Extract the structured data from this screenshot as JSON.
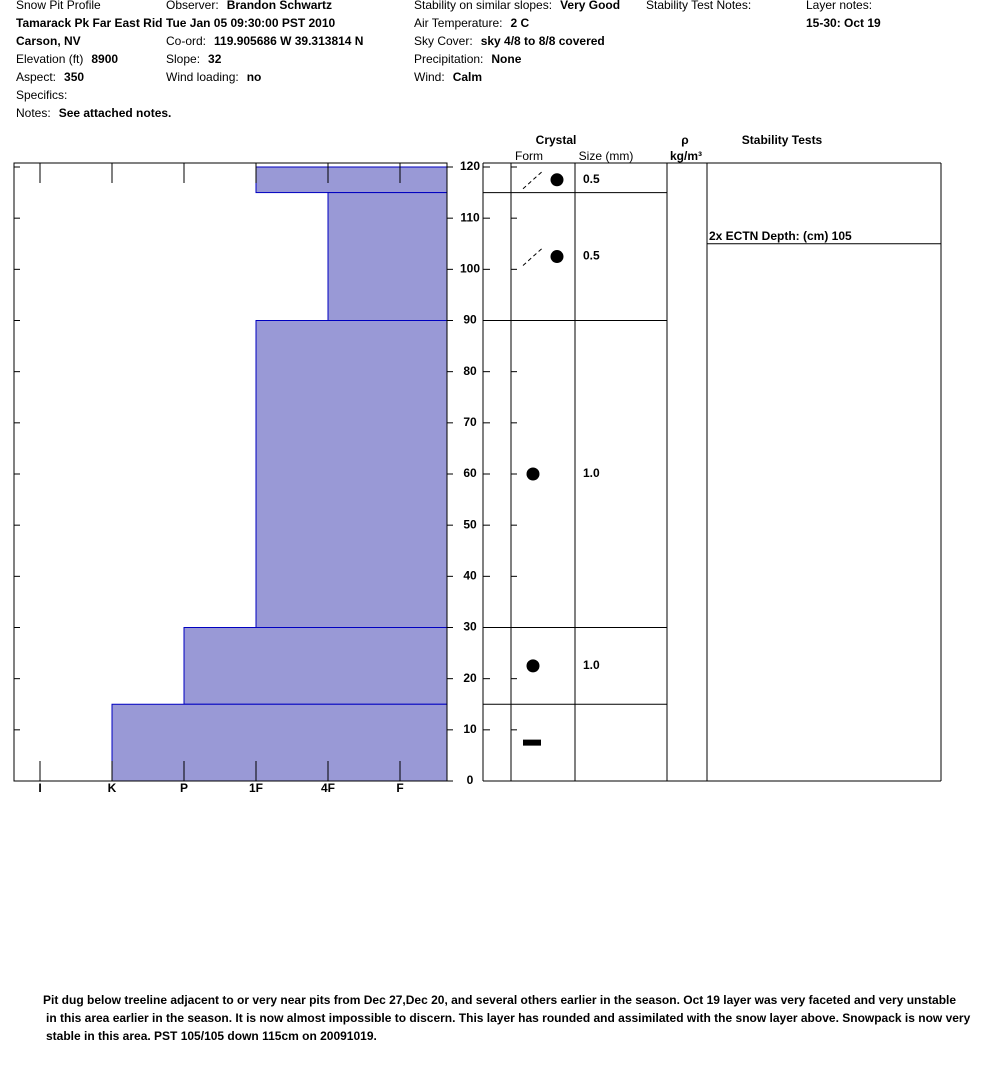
{
  "header": {
    "columns": [
      [
        {
          "text": "Snow Pit Profile"
        },
        {
          "value": "Tamarack Pk Far East Rid"
        },
        {
          "value": "Carson, NV"
        },
        {
          "label": "Elevation (ft)",
          "value": "8900"
        },
        {
          "label": "Aspect:",
          "value": "350"
        },
        {
          "label": "Specifics:"
        },
        {
          "label": "Notes:",
          "value": "See attached notes."
        }
      ],
      [
        {
          "label": "Observer:",
          "value": "Brandon Schwartz"
        },
        {
          "value": "Tue Jan 05 09:30:00 PST 2010"
        },
        {
          "label": "Co-ord:",
          "value": "119.905686 W 39.313814 N"
        },
        {
          "label": "Slope:",
          "value": "32"
        },
        {
          "label": "Wind loading:",
          "value": "no"
        }
      ],
      [
        {
          "label": "Stability on similar slopes:",
          "value": "Very Good"
        },
        {
          "label": "Air Temperature:",
          "value": "2 C"
        },
        {
          "label": "Sky Cover:",
          "value": "sky 4/8 to 8/8 covered"
        },
        {
          "label": "Precipitation:",
          "value": "None"
        },
        {
          "label": "Wind:",
          "value": "Calm"
        }
      ],
      [
        {
          "label": "Stability Test Notes:"
        }
      ],
      [
        {
          "label": "Layer notes:"
        },
        {
          "value": "15-30: Oct 19"
        }
      ]
    ]
  },
  "chart_data": {
    "type": "snow-profile",
    "column_headers": {
      "crystal": "Crystal",
      "form": "Form",
      "size": "Size (mm)",
      "density": "ρ",
      "density_unit": "kg/m³",
      "stability": "Stability Tests"
    },
    "hardness_scale": [
      "I",
      "K",
      "P",
      "1F",
      "4F",
      "F"
    ],
    "ylim": [
      0,
      120
    ],
    "yticks": [
      0,
      10,
      20,
      30,
      40,
      50,
      60,
      70,
      80,
      90,
      100,
      110,
      120
    ],
    "color": "#9999d6",
    "layers": [
      {
        "top": 120,
        "bottom": 115,
        "hardness": "1F",
        "form": "faceted-rounded",
        "size": "0.5"
      },
      {
        "top": 115,
        "bottom": 90,
        "hardness": "4F",
        "form": "faceted-rounded",
        "size": "0.5"
      },
      {
        "top": 90,
        "bottom": 30,
        "hardness": "1F",
        "form": "rounded",
        "size": "1.0"
      },
      {
        "top": 30,
        "bottom": 15,
        "hardness": "P",
        "form": "rounded",
        "size": "1.0"
      },
      {
        "top": 15,
        "bottom": 0,
        "hardness": "K",
        "form": "melt-freeze",
        "size": null
      }
    ],
    "stability_tests": [
      {
        "label": "2x ECTN  Depth: (cm) 105",
        "depth": 105
      }
    ]
  },
  "footer": {
    "lines": [
      "Pit dug below treeline adjacent to or very near pits from Dec 27,Dec 20, and several others earlier in the season. Oct 19 layer was very faceted and very unstable",
      "in this area earlier in the season. It is now almost impossible to discern. This layer has rounded and assimilated with the snow layer above. Snowpack is now very",
      "stable in this area. PST 105/105 down 115cm on 20091019."
    ]
  }
}
